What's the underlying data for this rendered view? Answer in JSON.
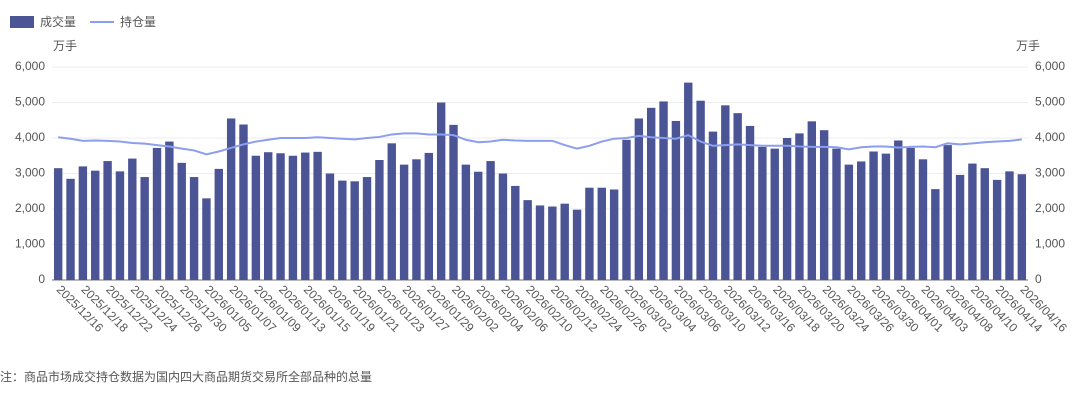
{
  "chart_data": {
    "type": "bar-line",
    "y_unit": "万手",
    "y2_unit": "万手",
    "note": "注：商品市场成交持仓数据为国内四大商品期货交易所全部品种的总量",
    "categories": [
      "2025/12/16",
      null,
      "2025/12/18",
      null,
      "2025/12/22",
      null,
      "2025/12/24",
      null,
      "2025/12/26",
      null,
      "2025/12/30",
      null,
      "2026/01/05",
      null,
      "2026/01/07",
      null,
      "2026/01/09",
      null,
      "2026/01/13",
      null,
      "2026/01/15",
      null,
      "2026/01/19",
      null,
      "2026/01/21",
      null,
      "2026/01/23",
      null,
      "2026/01/27",
      null,
      "2026/01/29",
      null,
      "2026/02/02",
      null,
      "2026/02/04",
      null,
      "2026/02/06",
      null,
      "2026/02/10",
      null,
      "2026/02/12",
      null,
      "2026/02/24",
      null,
      "2026/02/26",
      null,
      "2026/03/02",
      null,
      "2026/03/04",
      null,
      "2026/03/06",
      null,
      "2026/03/10",
      null,
      "2026/03/12",
      null,
      "2026/03/16",
      null,
      "2026/03/18",
      null,
      "2026/03/20",
      null,
      "2026/03/24",
      null,
      "2026/03/26",
      null,
      "2026/03/30",
      null,
      "2026/04/01",
      null,
      "2026/04/03",
      null,
      "2026/04/08",
      null,
      "2026/04/10",
      null,
      "2026/04/14",
      null,
      "2026/04/16"
    ],
    "series": [
      {
        "name": "成交量",
        "type": "bar",
        "color": "#4b5595",
        "values": [
          3150,
          2850,
          3200,
          3080,
          3350,
          3060,
          3420,
          2900,
          3720,
          3900,
          3300,
          2900,
          2300,
          3130,
          4550,
          4380,
          3500,
          3600,
          3570,
          3500,
          3590,
          3610,
          3000,
          2800,
          2780,
          2900,
          3380,
          3850,
          3250,
          3400,
          3580,
          5000,
          4370,
          3250,
          3050,
          3350,
          3000,
          2650,
          2250,
          2100,
          2070,
          2150,
          1980,
          2600,
          2600,
          2550,
          3950,
          4550,
          4850,
          5030,
          4480,
          5560,
          5050,
          4180,
          4920,
          4700,
          4340,
          3750,
          3700,
          4000,
          4130,
          4470,
          4220,
          3700,
          3250,
          3340,
          3620,
          3560,
          3930,
          3720,
          3400,
          2560,
          3800,
          2960,
          3280,
          3150,
          2820,
          3060,
          2980
        ]
      },
      {
        "name": "持仓量",
        "type": "line",
        "axis": "y2",
        "color": "#8c9eee",
        "values": [
          4020,
          3980,
          3920,
          3930,
          3920,
          3900,
          3860,
          3840,
          3800,
          3760,
          3700,
          3650,
          3540,
          3620,
          3720,
          3820,
          3900,
          3950,
          4000,
          4000,
          4000,
          4020,
          4000,
          3980,
          3960,
          4000,
          4030,
          4100,
          4130,
          4130,
          4100,
          4100,
          4080,
          3950,
          3880,
          3900,
          3950,
          3930,
          3920,
          3920,
          3920,
          3800,
          3700,
          3780,
          3900,
          3980,
          4000,
          4060,
          4020,
          4000,
          3980,
          4080,
          3900,
          3780,
          3800,
          3820,
          3800,
          3780,
          3780,
          3780,
          3760,
          3750,
          3750,
          3740,
          3680,
          3740,
          3760,
          3760,
          3730,
          3750,
          3760,
          3740,
          3850,
          3820,
          3850,
          3880,
          3900,
          3920,
          3960
        ]
      }
    ],
    "ylim": [
      0,
      6000
    ],
    "yticks": [
      0,
      {
        "value": 1000,
        "label": "1,000"
      },
      {
        "value": 2000,
        "label": "2,000"
      },
      {
        "value": 3000,
        "label": "3,000"
      },
      {
        "value": 4000,
        "label": "4,000"
      },
      {
        "value": 5000,
        "label": "5,000"
      },
      {
        "value": 6000,
        "label": "6,000"
      }
    ],
    "y2lim": [
      0,
      6000
    ],
    "y2ticks": [
      0,
      {
        "value": 1000,
        "label": "1,000"
      },
      {
        "value": 2000,
        "label": "2,000"
      },
      {
        "value": 3000,
        "label": "3,000"
      },
      {
        "value": 4000,
        "label": "4,000"
      },
      {
        "value": 5000,
        "label": "5,000"
      },
      {
        "value": 6000,
        "label": "6,000"
      }
    ],
    "grid": true,
    "legend": "top-left"
  }
}
